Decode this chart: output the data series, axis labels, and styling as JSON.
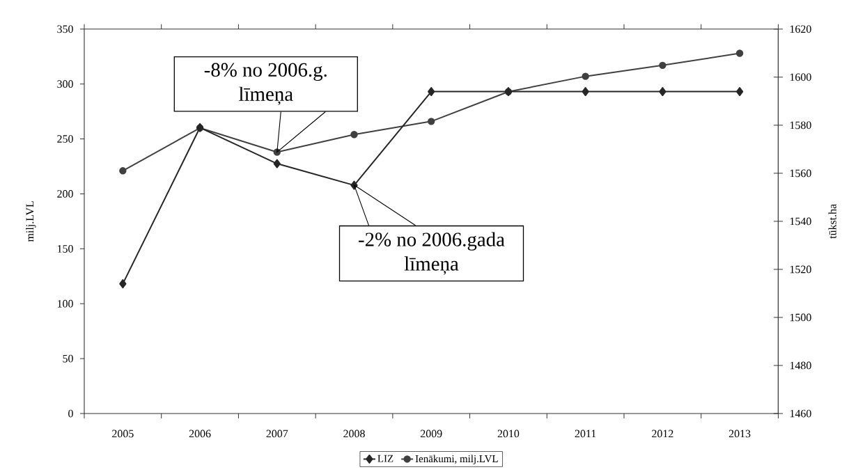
{
  "chart_data": {
    "type": "line",
    "categories": [
      "2005",
      "2006",
      "2007",
      "2008",
      "2009",
      "2010",
      "2011",
      "2012",
      "2013"
    ],
    "ylabel": "milj.LVL",
    "y2label": "tūkst.ha",
    "ylim": [
      0,
      350
    ],
    "yticks": [
      0,
      50,
      100,
      150,
      200,
      250,
      300,
      350
    ],
    "y2lim": [
      1460,
      1620
    ],
    "y2ticks": [
      1460,
      1480,
      1500,
      1520,
      1540,
      1560,
      1580,
      1600,
      1620
    ],
    "legend": "bottom",
    "series": [
      {
        "name": "LIZ",
        "color": "#262626",
        "axis": "y2",
        "marker": "diamond",
        "values": [
          1514,
          1579,
          1564,
          1555,
          1594,
          1594,
          1594,
          1594,
          1594
        ]
      },
      {
        "name": "Ienākumi, milj.LVL",
        "color": "#404040",
        "marker": "circle",
        "values": [
          221,
          260,
          238,
          254,
          266,
          293,
          307,
          317,
          328
        ]
      }
    ],
    "annotations": [
      {
        "text": "-8% no 2006.g. līmeņa",
        "x": "2007",
        "y": 238
      },
      {
        "text": "-2% no 2006.gada līmeņa",
        "x": "2008",
        "y": 208
      }
    ]
  }
}
